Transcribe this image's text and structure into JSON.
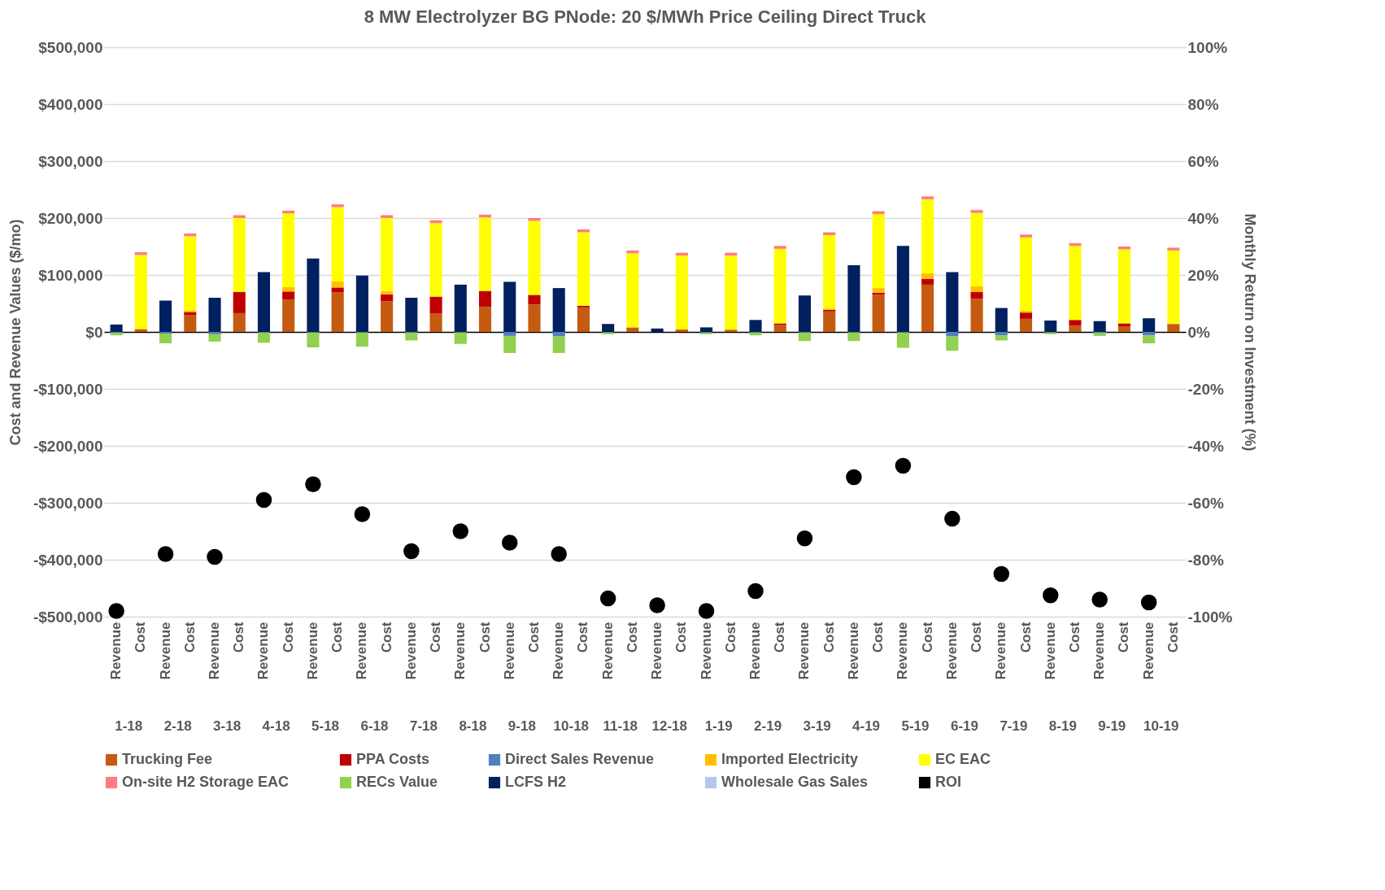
{
  "chart_data": {
    "type": "bar",
    "stacked": true,
    "title": "8 MW Electrolyzer BG PNode: 20 $/MWh Price Ceiling Direct Truck",
    "ylabel": "Cost and Revenue Values ($/mo)",
    "y2label": "Monthly Return on Investment (%)",
    "categories": [
      "Revenue",
      "Cost",
      "Revenue",
      "Cost",
      "Revenue",
      "Cost",
      "Revenue",
      "Cost",
      "Revenue",
      "Cost",
      "Revenue",
      "Cost",
      "Revenue",
      "Cost",
      "Revenue",
      "Cost",
      "Revenue",
      "Cost",
      "Revenue",
      "Cost",
      "Revenue",
      "Cost",
      "Revenue",
      "Cost",
      "Revenue",
      "Cost",
      "Revenue",
      "Cost",
      "Revenue",
      "Cost",
      "Revenue",
      "Cost",
      "Revenue",
      "Cost",
      "Revenue",
      "Cost",
      "Revenue",
      "Cost",
      "Revenue",
      "Cost",
      "Revenue",
      "Cost",
      "Revenue",
      "Cost"
    ],
    "annotations": [
      "1-18",
      "2-18",
      "3-18",
      "4-18",
      "5-18",
      "6-18",
      "7-18",
      "8-18",
      "9-18",
      "10-18",
      "11-18",
      "12-18",
      "1-19",
      "2-19",
      "3-19",
      "4-19",
      "5-19",
      "6-19",
      "7-19",
      "8-19",
      "9-19",
      "10-19"
    ],
    "ylim": [
      -500000,
      500000
    ],
    "yticks": [
      {
        "value": -500000,
        "label": "-$500,000"
      },
      {
        "value": -400000,
        "label": "-$400,000"
      },
      {
        "value": -300000,
        "label": "-$300,000"
      },
      {
        "value": -200000,
        "label": "-$200,000"
      },
      {
        "value": -100000,
        "label": "-$100,000"
      },
      {
        "value": 0,
        "label": "$0"
      },
      {
        "value": 100000,
        "label": "$100,000"
      },
      {
        "value": 200000,
        "label": "$200,000"
      },
      {
        "value": 300000,
        "label": "$300,000"
      },
      {
        "value": 400000,
        "label": "$400,000"
      },
      {
        "value": 500000,
        "label": "$500,000"
      }
    ],
    "y2lim": [
      -100,
      100
    ],
    "y2ticks": [
      {
        "value": -100,
        "label": "-100%"
      },
      {
        "value": -80,
        "label": "-80%"
      },
      {
        "value": -60,
        "label": "-60%"
      },
      {
        "value": -40,
        "label": "-40%"
      },
      {
        "value": -20,
        "label": "-20%"
      },
      {
        "value": 0,
        "label": "0%"
      },
      {
        "value": 20,
        "label": "20%"
      },
      {
        "value": 40,
        "label": "40%"
      },
      {
        "value": 60,
        "label": "60%"
      },
      {
        "value": 80,
        "label": "80%"
      },
      {
        "value": 100,
        "label": "100%"
      }
    ],
    "grid": "y",
    "legend": "bottom",
    "series": [
      {
        "name": "Trucking Fee",
        "color": "#c55a11",
        "type": "bar",
        "values": [
          null,
          5000,
          null,
          30000,
          null,
          33000,
          null,
          57000,
          null,
          70000,
          null,
          54000,
          null,
          32000,
          null,
          44000,
          null,
          48000,
          null,
          43000,
          null,
          8000,
          null,
          2000,
          null,
          4000,
          null,
          12000,
          null,
          36000,
          null,
          65000,
          null,
          83000,
          null,
          58000,
          null,
          23000,
          null,
          11000,
          null,
          10000,
          null,
          14000
        ]
      },
      {
        "name": "PPA Costs",
        "color": "#c00000",
        "type": "bar",
        "values": [
          null,
          0,
          null,
          5000,
          null,
          37000,
          null,
          14000,
          null,
          8000,
          null,
          12000,
          null,
          30000,
          null,
          28000,
          null,
          17000,
          null,
          3000,
          null,
          0,
          null,
          2000,
          null,
          0,
          null,
          3000,
          null,
          3000,
          null,
          4000,
          null,
          10000,
          null,
          12000,
          null,
          11000,
          null,
          10000,
          null,
          5000,
          null,
          0
        ]
      },
      {
        "name": "Direct Sales Revenue",
        "color": "#4f81bd",
        "type": "bar",
        "values": [
          -2000,
          null,
          -3000,
          null,
          -4000,
          null,
          -1000,
          null,
          -1000,
          null,
          -1000,
          null,
          -1000,
          null,
          -1000,
          null,
          -7000,
          null,
          -8000,
          null,
          -1000,
          null,
          0,
          null,
          -1000,
          null,
          -1000,
          null,
          -1000,
          null,
          -1000,
          null,
          -1000,
          null,
          -8000,
          null,
          -6000,
          null,
          -1000,
          null,
          -2000,
          null,
          -6000,
          null
        ]
      },
      {
        "name": "Imported Electricity",
        "color": "#ffc000",
        "type": "bar",
        "values": [
          null,
          0,
          null,
          3000,
          null,
          0,
          null,
          8000,
          null,
          11000,
          null,
          6000,
          null,
          0,
          null,
          0,
          null,
          0,
          null,
          0,
          null,
          0,
          null,
          0,
          null,
          0,
          null,
          0,
          null,
          2000,
          null,
          8000,
          null,
          10000,
          null,
          10000,
          null,
          3000,
          null,
          0,
          null,
          0,
          null,
          0
        ]
      },
      {
        "name": "EC EAC",
        "color": "#ffff00",
        "type": "bar",
        "values": [
          null,
          130000,
          null,
          130000,
          null,
          130000,
          null,
          129000,
          null,
          130000,
          null,
          128000,
          null,
          129000,
          null,
          129000,
          null,
          130000,
          null,
          129000,
          null,
          130000,
          null,
          130000,
          null,
          130000,
          null,
          131000,
          null,
          129000,
          null,
          130000,
          null,
          130000,
          null,
          129000,
          null,
          129000,
          null,
          130000,
          null,
          130000,
          null,
          129000
        ]
      },
      {
        "name": "On-site H2 Storage EAC",
        "color": "#ff7c80",
        "type": "bar",
        "values": [
          null,
          5000,
          null,
          5000,
          null,
          5000,
          null,
          5000,
          null,
          5000,
          null,
          5000,
          null,
          5000,
          null,
          5000,
          null,
          5000,
          null,
          5000,
          null,
          5000,
          null,
          5000,
          null,
          5000,
          null,
          5000,
          null,
          5000,
          null,
          5000,
          null,
          5000,
          null,
          5000,
          null,
          5000,
          null,
          5000,
          null,
          5000,
          null,
          5000
        ]
      },
      {
        "name": "RECs Value",
        "color": "#92d050",
        "type": "bar",
        "values": [
          -4000,
          null,
          -17000,
          null,
          -13000,
          null,
          -18000,
          null,
          -26000,
          null,
          -25000,
          null,
          -14000,
          null,
          -20000,
          null,
          -30000,
          null,
          -29000,
          null,
          -3000,
          null,
          0,
          null,
          -3000,
          null,
          -5000,
          null,
          -15000,
          null,
          -15000,
          null,
          -27000,
          null,
          -25000,
          null,
          -9000,
          null,
          -3000,
          null,
          -5000,
          null,
          -14000,
          null
        ]
      },
      {
        "name": "LCFS H2",
        "color": "#002060",
        "type": "bar",
        "values": [
          13000,
          null,
          55000,
          null,
          60000,
          null,
          105000,
          null,
          129000,
          null,
          99000,
          null,
          60000,
          null,
          83000,
          null,
          88000,
          null,
          77000,
          null,
          14000,
          null,
          6000,
          null,
          8000,
          null,
          21000,
          null,
          64000,
          null,
          117000,
          null,
          151000,
          null,
          105000,
          null,
          42000,
          null,
          20000,
          null,
          19000,
          null,
          24000,
          null
        ]
      },
      {
        "name": "Wholesale Gas Sales",
        "color": "#b4c7e7",
        "type": "bar",
        "values": [
          0,
          null,
          0,
          null,
          0,
          null,
          0,
          null,
          0,
          null,
          0,
          null,
          0,
          null,
          0,
          null,
          0,
          null,
          0,
          null,
          0,
          null,
          0,
          null,
          0,
          null,
          0,
          null,
          0,
          null,
          0,
          null,
          0,
          null,
          0,
          null,
          0,
          null,
          0,
          null,
          0,
          null,
          0,
          null
        ]
      },
      {
        "name": "ROI",
        "color": "#000000",
        "type": "scatter",
        "axis": "y2",
        "marker": "circle",
        "values": [
          -98,
          null,
          -78,
          null,
          -79,
          null,
          -59,
          null,
          -53.5,
          null,
          -64,
          null,
          -77,
          null,
          -70,
          null,
          -74,
          null,
          -78,
          null,
          -93.6,
          null,
          -96,
          null,
          -98,
          null,
          -91,
          null,
          -72.5,
          null,
          -51,
          null,
          -47,
          null,
          -65.6,
          null,
          -85,
          null,
          -92.5,
          null,
          -94,
          null,
          -95,
          null
        ]
      }
    ]
  }
}
